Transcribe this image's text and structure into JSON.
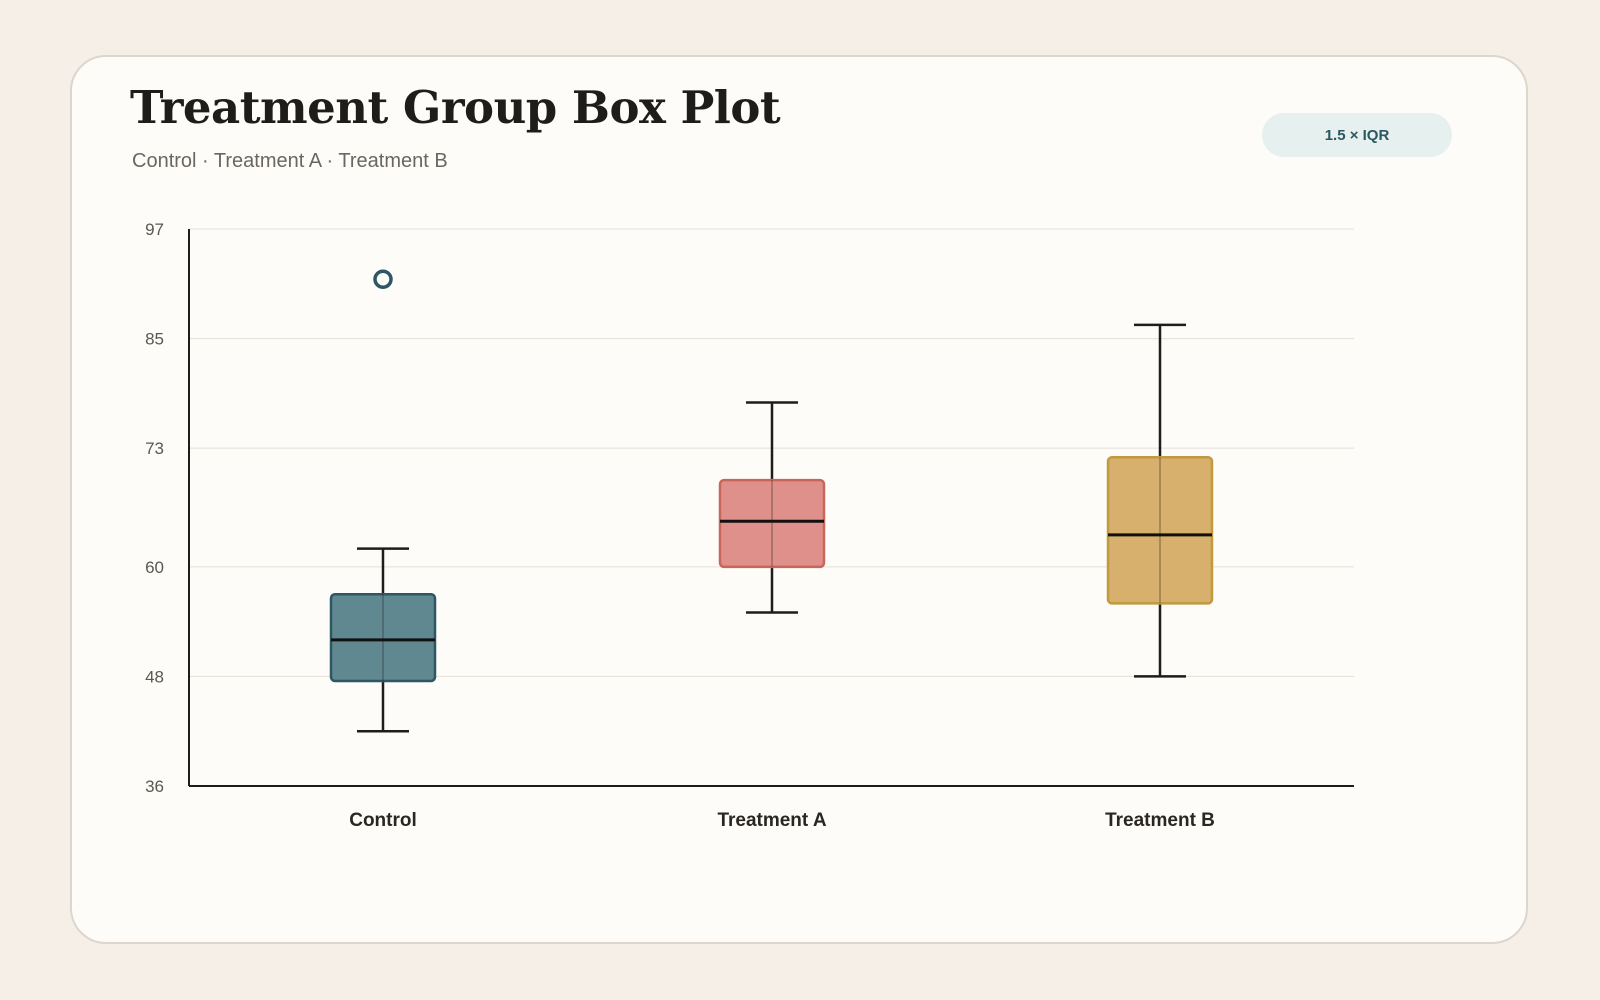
{
  "header": {
    "title": "Treatment Group Box Plot",
    "subtitle": "Control · Treatment A · Treatment B",
    "badge": "1.5 × IQR"
  },
  "chart_data": {
    "type": "box",
    "title": "Treatment Group Box Plot",
    "subtitle": "Control · Treatment A · Treatment B",
    "xlabel": "",
    "ylabel": "",
    "ylim": [
      36,
      97
    ],
    "yticks": [
      36,
      48,
      60,
      73,
      85,
      97
    ],
    "grid": true,
    "whisker_rule": "1.5 × IQR",
    "categories": [
      "Control",
      "Treatment A",
      "Treatment B"
    ],
    "series": [
      {
        "category": "Control",
        "whisker_low": 42,
        "q1": 47.5,
        "median": 52,
        "q3": 57,
        "whisker_high": 62,
        "outliers": [
          91.5
        ],
        "color": "#5f8891",
        "stroke": "#2f5663"
      },
      {
        "category": "Treatment A",
        "whisker_low": 55,
        "q1": 60,
        "median": 65,
        "q3": 69.5,
        "whisker_high": 78,
        "outliers": [],
        "color": "#e0908a",
        "stroke": "#c7675c"
      },
      {
        "category": "Treatment B",
        "whisker_low": 48,
        "q1": 56,
        "median": 63.5,
        "q3": 72,
        "whisker_high": 86.5,
        "outliers": [],
        "color": "#d6b06c",
        "stroke": "#c2993f"
      }
    ]
  }
}
